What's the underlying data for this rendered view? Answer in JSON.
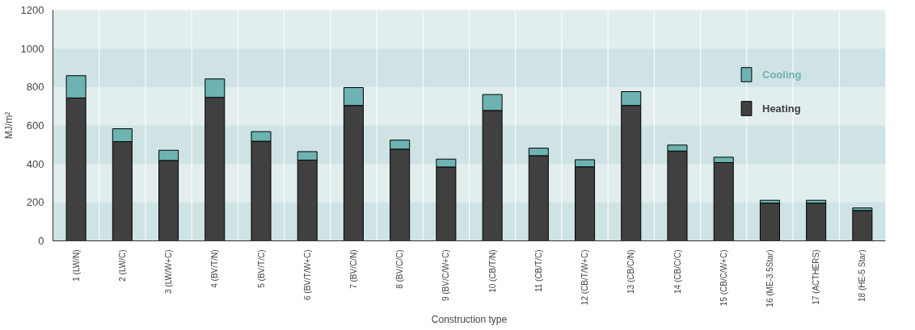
{
  "chart_data": {
    "type": "bar",
    "stacked": true,
    "xlabel": "Construction type",
    "ylabel": "MJ/m²",
    "categories": [
      "1 (LW/N)",
      "2 (LW/C)",
      "3 (LW/W+C)",
      "4 (BV/T/N)",
      "5 (BV/T/C)",
      "6 (BV/T/W+C)",
      "7 (BV/C/N)",
      "8 (BV/C/C)",
      "9 (BV/C/W+C)",
      "10 (CB/T/N)",
      "11 (CB/T/C)",
      "12 (CB/T/W+C)",
      "13 (CB/C/N)",
      "14 (CB/C/C)",
      "15 (CB/C/W+C)",
      "16 (ME-3.5Star)",
      "17 (ACTHERS)",
      "18 (HE-5 Star)"
    ],
    "series": [
      {
        "name": "Heating",
        "color": "#404040",
        "values": [
          743,
          516,
          418,
          746,
          518,
          420,
          704,
          477,
          384,
          678,
          443,
          385,
          704,
          467,
          407,
          196,
          196,
          158
        ]
      },
      {
        "name": "Cooling",
        "color": "#6cb3b1",
        "values": [
          116,
          67,
          53,
          96,
          50,
          44,
          93,
          47,
          41,
          83,
          39,
          37,
          72,
          31,
          28,
          15,
          15,
          13
        ]
      }
    ],
    "ylim": [
      0,
      1200
    ],
    "yticks": [
      0,
      200,
      400,
      600,
      800,
      1000,
      1200
    ],
    "grid": "x",
    "legend": "top right"
  }
}
